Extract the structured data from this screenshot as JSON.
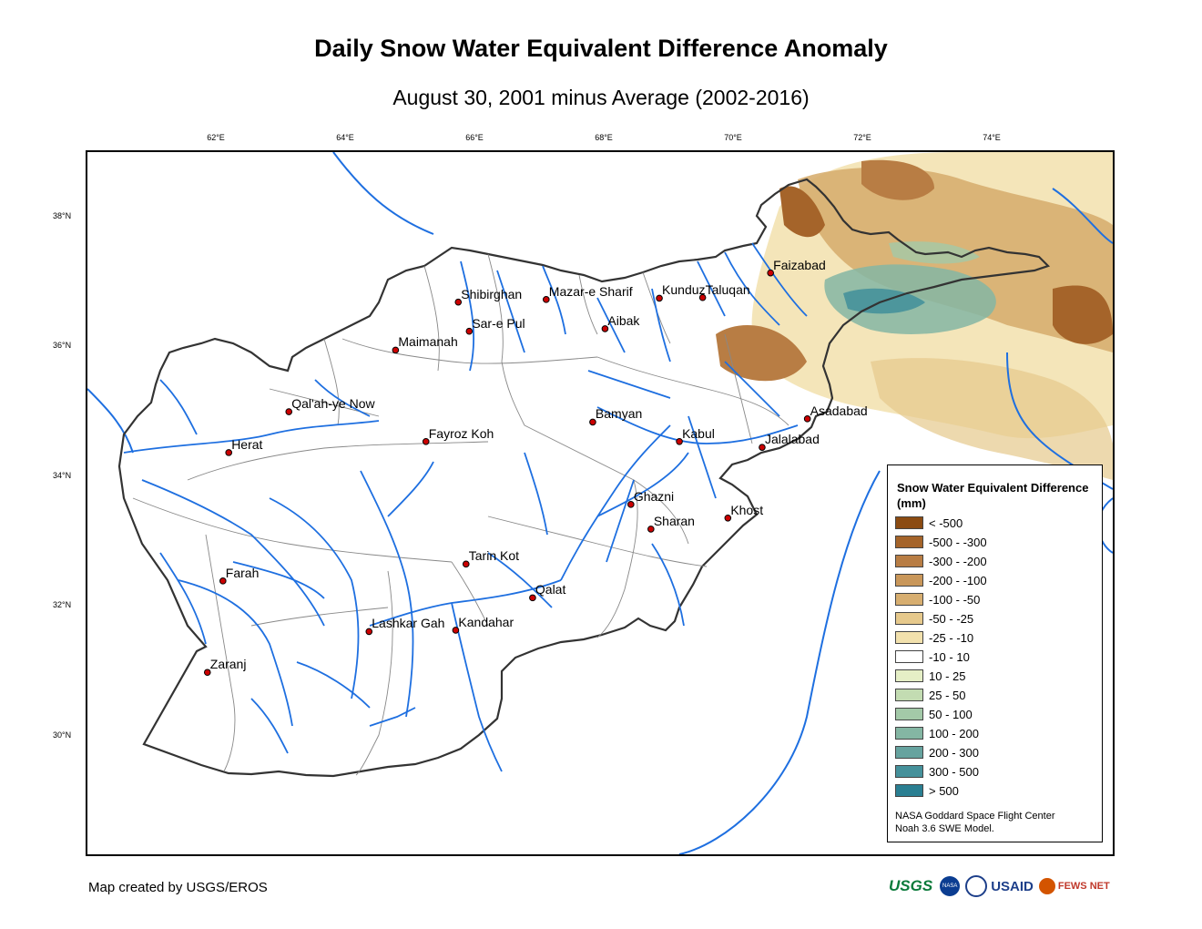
{
  "title": "Daily Snow Water Equivalent Difference Anomaly",
  "subtitle": "August 30, 2001 minus Average (2002-2016)",
  "lon_ticks": [
    "62°E",
    "64°E",
    "66°E",
    "68°E",
    "70°E",
    "72°E",
    "74°E"
  ],
  "lat_ticks": [
    "38°N",
    "36°N",
    "34°N",
    "32°N",
    "30°N"
  ],
  "cities": [
    {
      "name": "Shibirghan",
      "lon": 65.75,
      "lat": 36.67
    },
    {
      "name": "Mazar-e Sharif",
      "lon": 67.11,
      "lat": 36.71
    },
    {
      "name": "Kunduz",
      "lon": 68.86,
      "lat": 36.73
    },
    {
      "name": "Taluqan",
      "lon": 69.53,
      "lat": 36.74
    },
    {
      "name": "Faizabad",
      "lon": 70.58,
      "lat": 37.12
    },
    {
      "name": "Sar-e Pul",
      "lon": 65.92,
      "lat": 36.22
    },
    {
      "name": "Aibak",
      "lon": 68.02,
      "lat": 36.26
    },
    {
      "name": "Maimanah",
      "lon": 64.78,
      "lat": 35.93
    },
    {
      "name": "Qal'ah-ye Now",
      "lon": 63.13,
      "lat": 34.98
    },
    {
      "name": "Bamyan",
      "lon": 67.83,
      "lat": 34.82
    },
    {
      "name": "Asadabad",
      "lon": 71.15,
      "lat": 34.87
    },
    {
      "name": "Fayroz Koh",
      "lon": 65.25,
      "lat": 34.52
    },
    {
      "name": "Kabul",
      "lon": 69.17,
      "lat": 34.52
    },
    {
      "name": "Jalalabad",
      "lon": 70.45,
      "lat": 34.43
    },
    {
      "name": "Herat",
      "lon": 62.2,
      "lat": 34.35
    },
    {
      "name": "Ghazni",
      "lon": 68.42,
      "lat": 33.55
    },
    {
      "name": "Sharan",
      "lon": 68.73,
      "lat": 33.17
    },
    {
      "name": "Khost",
      "lon": 69.92,
      "lat": 33.34
    },
    {
      "name": "Tarin Kot",
      "lon": 65.87,
      "lat": 32.63
    },
    {
      "name": "Farah",
      "lon": 62.11,
      "lat": 32.37
    },
    {
      "name": "Qalat",
      "lon": 66.9,
      "lat": 32.11
    },
    {
      "name": "Lashkar Gah",
      "lon": 64.37,
      "lat": 31.59
    },
    {
      "name": "Kandahar",
      "lon": 65.71,
      "lat": 31.61
    },
    {
      "name": "Zaranj",
      "lon": 61.87,
      "lat": 30.96
    }
  ],
  "legend": {
    "title": "Snow Water Equivalent Difference (mm)",
    "items": [
      {
        "label": "< -500",
        "color": "#8b4b12"
      },
      {
        "label": "-500 - -300",
        "color": "#a5642a"
      },
      {
        "label": "-300 - -200",
        "color": "#b87d44"
      },
      {
        "label": "-200 - -100",
        "color": "#c9975a"
      },
      {
        "label": "-100 - -50",
        "color": "#d7ae70"
      },
      {
        "label": "-50 - -25",
        "color": "#e6c98c"
      },
      {
        "label": "-25 - -10",
        "color": "#f2e1ad"
      },
      {
        "label": "-10 - 10",
        "color": "#ffffff"
      },
      {
        "label": "10 - 25",
        "color": "#e5efc6"
      },
      {
        "label": "25 - 50",
        "color": "#c3dcb2"
      },
      {
        "label": "50 - 100",
        "color": "#a3c9a8"
      },
      {
        "label": "100 - 200",
        "color": "#84b6a3"
      },
      {
        "label": "200 - 300",
        "color": "#66a39f"
      },
      {
        "label": "300 - 500",
        "color": "#45919b"
      },
      {
        "label": "> 500",
        "color": "#2a7f92"
      }
    ],
    "credit_line1": "NASA Goddard Space Flight Center",
    "credit_line2": "Noah 3.6 SWE Model."
  },
  "credit": "Map created by USGS/EROS",
  "logos": {
    "usgs": "USGS",
    "nasa": "NASA",
    "usaid": "USAID",
    "fewsnet": "FEWS NET"
  },
  "colors": {
    "river": "#1e6fe0",
    "border": "#333333",
    "province": "#888888",
    "city_fill": "#cc0000"
  }
}
